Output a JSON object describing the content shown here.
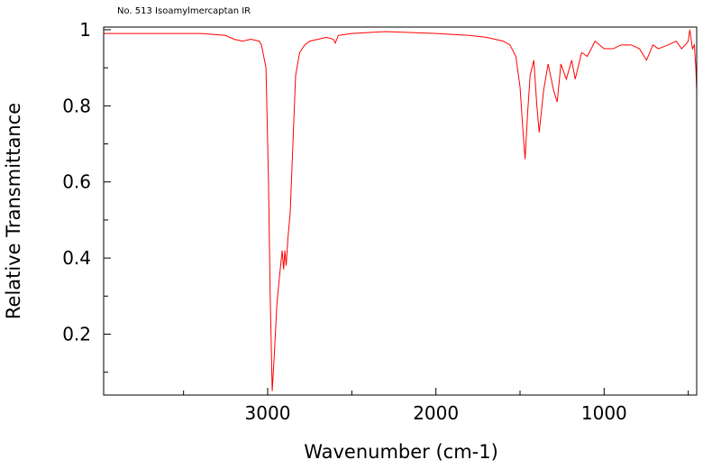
{
  "chart_data": {
    "type": "line",
    "title": "No. 513 Isoamylmercaptan IR",
    "xlabel": "Wavenumber (cm-1)",
    "ylabel": "Relative Transmittance",
    "xlim": [
      3975,
      450
    ],
    "ylim": [
      0.04,
      1.007
    ],
    "xticks": [
      3000,
      2000,
      1000
    ],
    "xminor": [
      3500,
      2500,
      1500,
      500
    ],
    "yticks": [
      0.2,
      0.4,
      0.6,
      0.8,
      1
    ],
    "yminor": [
      0.1,
      0.3,
      0.5,
      0.7,
      0.9
    ],
    "color": "#ff0000",
    "x": [
      3975,
      3800,
      3600,
      3400,
      3250,
      3200,
      3150,
      3100,
      3050,
      3037,
      3010,
      2995,
      2985,
      2973,
      2960,
      2945,
      2930,
      2914,
      2905,
      2898,
      2890,
      2880,
      2866,
      2850,
      2834,
      2810,
      2780,
      2750,
      2700,
      2650,
      2610,
      2598,
      2580,
      2500,
      2300,
      2000,
      1800,
      1700,
      1650,
      1600,
      1560,
      1525,
      1500,
      1485,
      1470,
      1455,
      1440,
      1418,
      1400,
      1386,
      1360,
      1333,
      1300,
      1279,
      1257,
      1225,
      1193,
      1172,
      1134,
      1100,
      1054,
      1000,
      946,
      900,
      839,
      790,
      748,
      710,
      678,
      620,
      571,
      540,
      518,
      500,
      491,
      475,
      464,
      455,
      450
    ],
    "values": [
      0.99,
      0.99,
      0.99,
      0.99,
      0.985,
      0.975,
      0.97,
      0.975,
      0.97,
      0.96,
      0.9,
      0.6,
      0.3,
      0.05,
      0.15,
      0.28,
      0.35,
      0.42,
      0.37,
      0.42,
      0.38,
      0.45,
      0.52,
      0.7,
      0.88,
      0.94,
      0.96,
      0.97,
      0.975,
      0.98,
      0.975,
      0.965,
      0.985,
      0.99,
      0.995,
      0.99,
      0.985,
      0.98,
      0.975,
      0.97,
      0.96,
      0.93,
      0.85,
      0.75,
      0.66,
      0.78,
      0.88,
      0.92,
      0.8,
      0.73,
      0.84,
      0.91,
      0.84,
      0.81,
      0.91,
      0.87,
      0.92,
      0.87,
      0.94,
      0.93,
      0.97,
      0.95,
      0.95,
      0.96,
      0.96,
      0.95,
      0.92,
      0.96,
      0.95,
      0.96,
      0.97,
      0.95,
      0.96,
      0.97,
      1.0,
      0.95,
      0.96,
      0.9,
      0.84
    ]
  }
}
